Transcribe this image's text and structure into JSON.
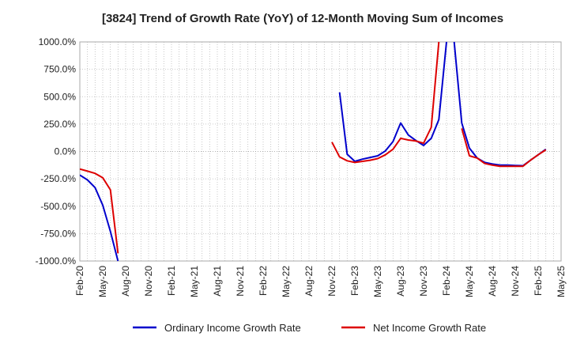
{
  "chart_data": {
    "type": "line",
    "title": "[3824]  Trend of Growth Rate (YoY) of 12-Month Moving Sum of Incomes",
    "xlabel": "",
    "ylabel": "",
    "ylim": [
      -1000,
      1000
    ],
    "yticks": [
      1000,
      750,
      500,
      250,
      0,
      -250,
      -500,
      -750,
      -1000
    ],
    "ytick_labels": [
      "1000.0%",
      "750.0%",
      "500.0%",
      "250.0%",
      "0.0%",
      "-250.0%",
      "-500.0%",
      "-750.0%",
      "-1000.0%"
    ],
    "xlim": [
      "2020-02",
      "2025-05"
    ],
    "xtick_labels": [
      "Feb-20",
      "May-20",
      "Aug-20",
      "Nov-20",
      "Feb-21",
      "May-21",
      "Aug-21",
      "Nov-21",
      "Feb-22",
      "May-22",
      "Aug-22",
      "Nov-22",
      "Feb-23",
      "May-23",
      "Aug-23",
      "Nov-23",
      "Feb-24",
      "May-24",
      "Aug-24",
      "Nov-24",
      "Feb-25",
      "May-25"
    ],
    "grid": true,
    "legend_position": "bottom",
    "series": [
      {
        "name": "Ordinary Income Growth Rate",
        "color": "#0000cc",
        "points": [
          [
            "2020-02",
            -215
          ],
          [
            "2020-03",
            -260
          ],
          [
            "2020-04",
            -330
          ],
          [
            "2020-05",
            -490
          ],
          [
            "2020-06",
            -730
          ],
          [
            "2020-07",
            -1000
          ],
          null,
          [
            "2022-12",
            540
          ],
          [
            "2023-01",
            -25
          ],
          [
            "2023-02",
            -90
          ],
          [
            "2023-03",
            -70
          ],
          [
            "2023-04",
            -55
          ],
          [
            "2023-05",
            -40
          ],
          [
            "2023-06",
            5
          ],
          [
            "2023-07",
            90
          ],
          [
            "2023-08",
            260
          ],
          [
            "2023-09",
            150
          ],
          [
            "2023-10",
            100
          ],
          [
            "2023-11",
            55
          ],
          [
            "2023-12",
            120
          ],
          [
            "2024-01",
            290
          ],
          [
            "2024-02",
            1000
          ],
          null,
          [
            "2024-03",
            1000
          ],
          [
            "2024-04",
            260
          ],
          [
            "2024-05",
            30
          ],
          [
            "2024-06",
            -60
          ],
          [
            "2024-07",
            -100
          ],
          [
            "2024-08",
            -115
          ],
          [
            "2024-09",
            -125
          ],
          [
            "2024-10",
            -125
          ],
          [
            "2024-11",
            -128
          ],
          [
            "2024-12",
            -130
          ],
          [
            "2025-01",
            -80
          ],
          [
            "2025-02",
            -30
          ],
          [
            "2025-03",
            20
          ]
        ]
      },
      {
        "name": "Net Income Growth Rate",
        "color": "#dd0000",
        "points": [
          [
            "2020-02",
            -160
          ],
          [
            "2020-03",
            -180
          ],
          [
            "2020-04",
            -200
          ],
          [
            "2020-05",
            -240
          ],
          [
            "2020-06",
            -350
          ],
          [
            "2020-07",
            -930
          ],
          null,
          [
            "2022-11",
            85
          ],
          [
            "2022-12",
            -50
          ],
          [
            "2023-01",
            -85
          ],
          [
            "2023-02",
            -100
          ],
          [
            "2023-03",
            -90
          ],
          [
            "2023-04",
            -80
          ],
          [
            "2023-05",
            -65
          ],
          [
            "2023-06",
            -30
          ],
          [
            "2023-07",
            20
          ],
          [
            "2023-08",
            120
          ],
          [
            "2023-09",
            105
          ],
          [
            "2023-10",
            95
          ],
          [
            "2023-11",
            75
          ],
          [
            "2023-12",
            220
          ],
          [
            "2024-01",
            1000
          ],
          null,
          [
            "2024-04",
            210
          ],
          [
            "2024-05",
            -40
          ],
          [
            "2024-06",
            -60
          ],
          [
            "2024-07",
            -110
          ],
          [
            "2024-08",
            -125
          ],
          [
            "2024-09",
            -135
          ],
          [
            "2024-10",
            -135
          ],
          [
            "2024-11",
            -135
          ],
          [
            "2024-12",
            -135
          ],
          [
            "2025-01",
            -80
          ],
          [
            "2025-02",
            -30
          ],
          [
            "2025-03",
            15
          ]
        ]
      }
    ]
  }
}
